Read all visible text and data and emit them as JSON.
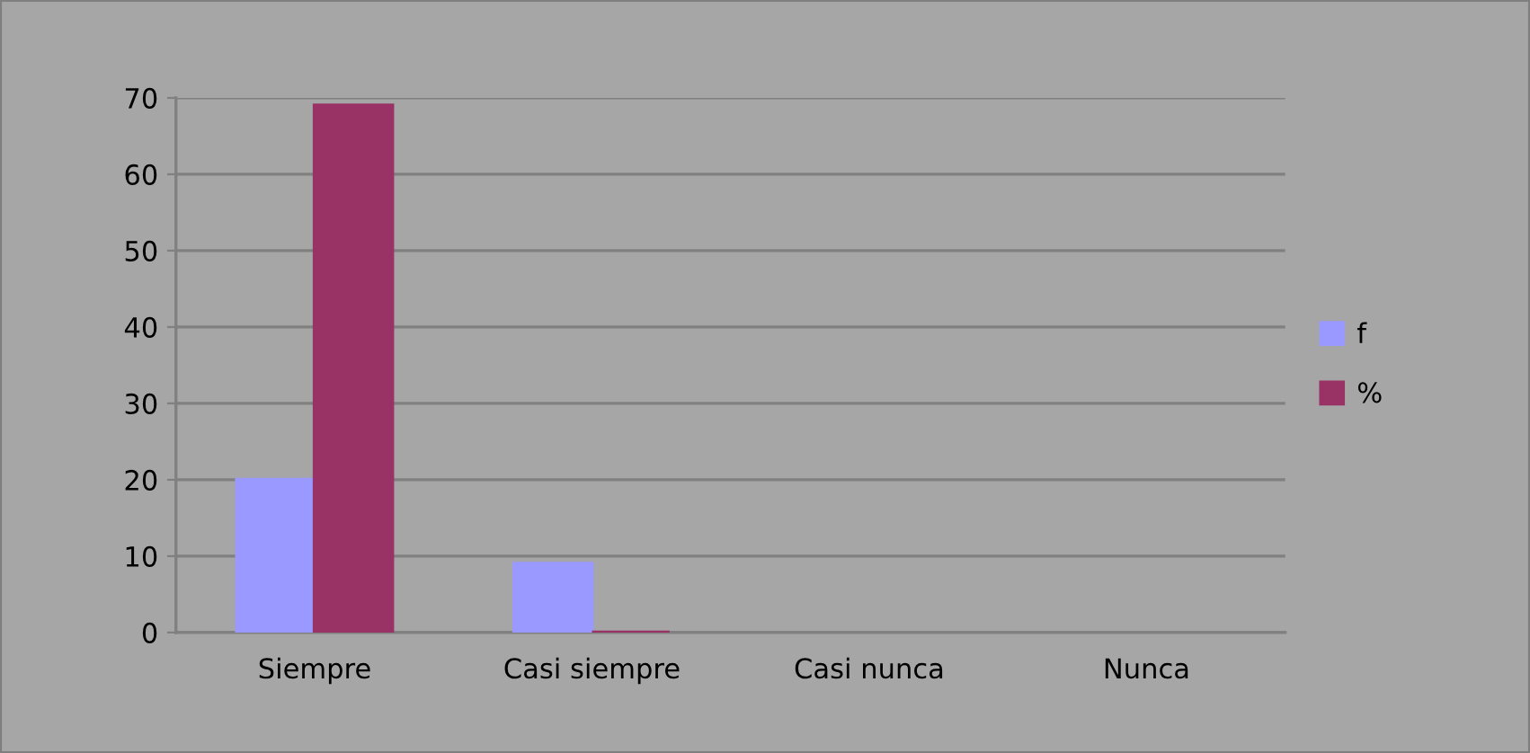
{
  "chart_data": {
    "type": "bar",
    "categories": [
      "Siempre",
      "Casi siempre",
      "Casi nunca",
      "Nunca"
    ],
    "series": [
      {
        "name": "f",
        "color": "#9999ff",
        "values": [
          20,
          9,
          null,
          null
        ]
      },
      {
        "name": "%",
        "color": "#993366",
        "values": [
          69,
          0,
          null,
          null
        ]
      }
    ],
    "ylim": [
      0,
      70
    ],
    "yticks": [
      0,
      10,
      20,
      30,
      40,
      50,
      60,
      70
    ],
    "grid": "y",
    "legend": "right"
  }
}
